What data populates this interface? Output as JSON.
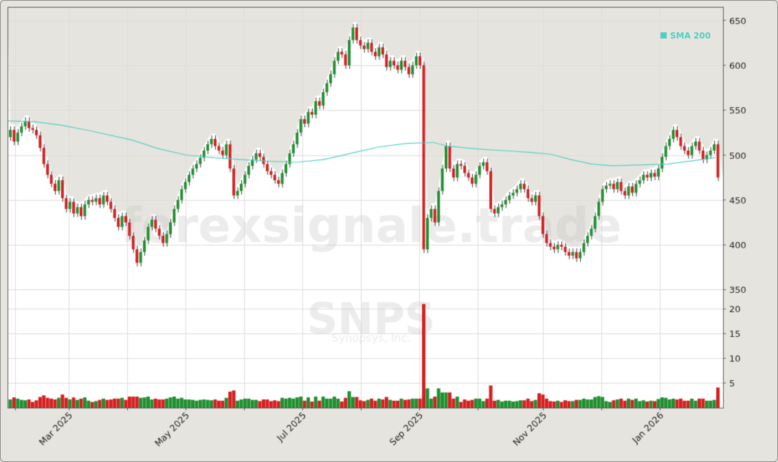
{
  "chart_data": {
    "type": "candlestick",
    "ticker": "SNPS",
    "company": "Synopsys, Inc.",
    "watermark": "forexsignale.trade",
    "legend": [
      {
        "name": "SMA 200",
        "color": "#4fcfc4"
      }
    ],
    "price_axis": {
      "ticks": [
        350,
        400,
        450,
        500,
        550,
        600,
        650
      ],
      "range": [
        345,
        665
      ],
      "position": "right"
    },
    "volume_axis": {
      "ticks": [
        5,
        10,
        15,
        20
      ],
      "range": [
        0,
        22
      ],
      "position": "right",
      "unit": "millions"
    },
    "x_tick_labels": [
      "Mar 2025",
      "May 2025",
      "Jul 2025",
      "Sep 2025",
      "Nov 2025",
      "Jan 2026"
    ],
    "x_minor_ticks": 12,
    "colors": {
      "up": "#1f8f2f",
      "down": "#d42020",
      "sma": "#4fcfc4",
      "grid": "#dcdcdc",
      "shade": "#e6e4df"
    },
    "price_path": [
      [
        520,
        528
      ],
      [
        528,
        515
      ],
      [
        515,
        525
      ],
      [
        525,
        532
      ],
      [
        532,
        538
      ],
      [
        538,
        530
      ],
      [
        530,
        528
      ],
      [
        528,
        522
      ],
      [
        522,
        508
      ],
      [
        508,
        490
      ],
      [
        490,
        478
      ],
      [
        478,
        468
      ],
      [
        468,
        460
      ],
      [
        460,
        472
      ],
      [
        472,
        452
      ],
      [
        452,
        440
      ],
      [
        440,
        448
      ],
      [
        448,
        435
      ],
      [
        435,
        442
      ],
      [
        442,
        432
      ],
      [
        432,
        445
      ],
      [
        445,
        450
      ],
      [
        450,
        448
      ],
      [
        448,
        452
      ],
      [
        452,
        445
      ],
      [
        445,
        455
      ],
      [
        455,
        448
      ],
      [
        448,
        440
      ],
      [
        440,
        430
      ],
      [
        430,
        420
      ],
      [
        420,
        432
      ],
      [
        432,
        425
      ],
      [
        425,
        410
      ],
      [
        410,
        395
      ],
      [
        395,
        380
      ],
      [
        380,
        392
      ],
      [
        392,
        405
      ],
      [
        405,
        420
      ],
      [
        420,
        428
      ],
      [
        428,
        418
      ],
      [
        418,
        410
      ],
      [
        410,
        402
      ],
      [
        402,
        412
      ],
      [
        412,
        425
      ],
      [
        425,
        440
      ],
      [
        440,
        450
      ],
      [
        450,
        462
      ],
      [
        462,
        470
      ],
      [
        470,
        478
      ],
      [
        478,
        485
      ],
      [
        485,
        490
      ],
      [
        490,
        497
      ],
      [
        497,
        505
      ],
      [
        505,
        512
      ],
      [
        512,
        518
      ],
      [
        518,
        510
      ],
      [
        510,
        505
      ],
      [
        505,
        500
      ],
      [
        500,
        512
      ],
      [
        512,
        485
      ],
      [
        485,
        455
      ],
      [
        455,
        460
      ],
      [
        460,
        468
      ],
      [
        468,
        478
      ],
      [
        478,
        488
      ],
      [
        488,
        495
      ],
      [
        495,
        502
      ],
      [
        502,
        498
      ],
      [
        498,
        490
      ],
      [
        490,
        482
      ],
      [
        482,
        478
      ],
      [
        478,
        472
      ],
      [
        472,
        468
      ],
      [
        468,
        480
      ],
      [
        480,
        490
      ],
      [
        490,
        502
      ],
      [
        502,
        512
      ],
      [
        512,
        525
      ],
      [
        525,
        540
      ],
      [
        540,
        535
      ],
      [
        535,
        548
      ],
      [
        548,
        545
      ],
      [
        545,
        560
      ],
      [
        560,
        555
      ],
      [
        555,
        570
      ],
      [
        570,
        580
      ],
      [
        580,
        590
      ],
      [
        590,
        605
      ],
      [
        605,
        615
      ],
      [
        615,
        612
      ],
      [
        612,
        600
      ],
      [
        600,
        628
      ],
      [
        628,
        642
      ],
      [
        642,
        628
      ],
      [
        628,
        622
      ],
      [
        622,
        618
      ],
      [
        618,
        625
      ],
      [
        625,
        615
      ],
      [
        615,
        610
      ],
      [
        610,
        620
      ],
      [
        620,
        612
      ],
      [
        612,
        598
      ],
      [
        598,
        605
      ],
      [
        605,
        600
      ],
      [
        600,
        595
      ],
      [
        595,
        605
      ],
      [
        605,
        598
      ],
      [
        598,
        590
      ],
      [
        590,
        600
      ],
      [
        600,
        610
      ],
      [
        610,
        600
      ],
      [
        600,
        395
      ],
      [
        395,
        430
      ],
      [
        430,
        440
      ],
      [
        440,
        425
      ],
      [
        425,
        460
      ],
      [
        460,
        485
      ],
      [
        485,
        510
      ],
      [
        510,
        485
      ],
      [
        485,
        475
      ],
      [
        475,
        490
      ],
      [
        490,
        488
      ],
      [
        488,
        480
      ],
      [
        480,
        475
      ],
      [
        475,
        468
      ],
      [
        468,
        478
      ],
      [
        478,
        488
      ],
      [
        488,
        492
      ],
      [
        492,
        482
      ],
      [
        482,
        440
      ],
      [
        440,
        435
      ],
      [
        435,
        442
      ],
      [
        442,
        445
      ],
      [
        445,
        450
      ],
      [
        450,
        455
      ],
      [
        455,
        458
      ],
      [
        458,
        462
      ],
      [
        462,
        468
      ],
      [
        468,
        462
      ],
      [
        462,
        452
      ],
      [
        452,
        448
      ],
      [
        448,
        455
      ],
      [
        455,
        432
      ],
      [
        432,
        412
      ],
      [
        412,
        402
      ],
      [
        402,
        398
      ],
      [
        398,
        395
      ],
      [
        395,
        400
      ],
      [
        400,
        398
      ],
      [
        398,
        392
      ],
      [
        392,
        388
      ],
      [
        388,
        392
      ],
      [
        392,
        385
      ],
      [
        385,
        392
      ],
      [
        392,
        402
      ],
      [
        402,
        410
      ],
      [
        410,
        418
      ],
      [
        418,
        432
      ],
      [
        432,
        448
      ],
      [
        448,
        462
      ],
      [
        462,
        466
      ],
      [
        466,
        468
      ],
      [
        468,
        462
      ],
      [
        462,
        470
      ],
      [
        470,
        460
      ],
      [
        460,
        455
      ],
      [
        455,
        465
      ],
      [
        465,
        458
      ],
      [
        458,
        468
      ],
      [
        468,
        472
      ],
      [
        472,
        478
      ],
      [
        478,
        475
      ],
      [
        475,
        480
      ],
      [
        480,
        476
      ],
      [
        476,
        485
      ],
      [
        485,
        498
      ],
      [
        498,
        510
      ],
      [
        510,
        518
      ],
      [
        518,
        528
      ],
      [
        528,
        520
      ],
      [
        520,
        510
      ],
      [
        510,
        505
      ],
      [
        505,
        500
      ],
      [
        500,
        510
      ],
      [
        510,
        515
      ],
      [
        515,
        505
      ],
      [
        505,
        495
      ],
      [
        495,
        500
      ],
      [
        500,
        505
      ],
      [
        505,
        512
      ],
      [
        512,
        475
      ]
    ],
    "sma_200": [
      [
        0,
        538
      ],
      [
        40,
        537
      ],
      [
        80,
        533
      ],
      [
        120,
        527
      ],
      [
        180,
        517
      ],
      [
        220,
        507
      ],
      [
        260,
        500
      ],
      [
        300,
        497
      ],
      [
        340,
        495
      ],
      [
        380,
        493
      ],
      [
        420,
        492
      ],
      [
        460,
        495
      ],
      [
        500,
        502
      ],
      [
        540,
        509
      ],
      [
        580,
        513
      ],
      [
        620,
        514
      ],
      [
        640,
        510
      ],
      [
        680,
        507
      ],
      [
        720,
        505
      ],
      [
        760,
        503
      ],
      [
        790,
        501
      ],
      [
        820,
        495
      ],
      [
        850,
        490
      ],
      [
        880,
        488
      ],
      [
        920,
        489
      ],
      [
        960,
        490
      ],
      [
        1000,
        494
      ],
      [
        1030,
        497
      ]
    ]
  }
}
